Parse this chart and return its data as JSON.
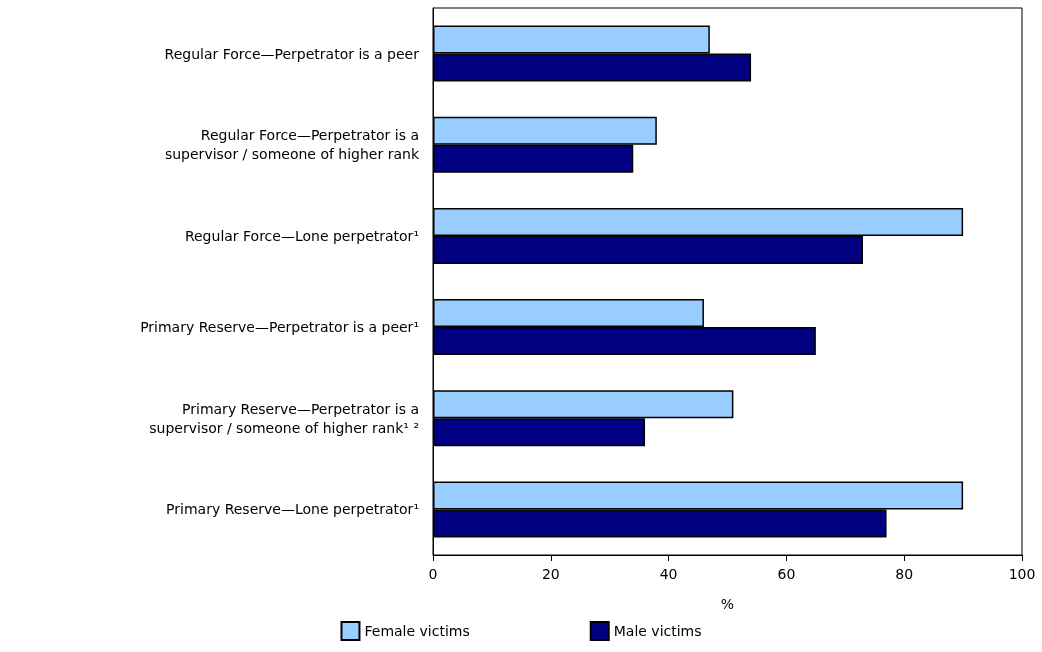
{
  "chart_data": {
    "type": "bar",
    "orientation": "horizontal",
    "xlabel": "%",
    "categories": [
      "Regular Force—Perpetrator is a peer",
      "Regular Force—Perpetrator is a\nsupervisor / someone of higher rank",
      "Regular Force—Lone perpetrator¹",
      "Primary Reserve—Perpetrator is a peer¹",
      "Primary Reserve—Perpetrator is a\nsupervisor / someone of higher rank¹ ²",
      "Primary Reserve—Lone perpetrator¹"
    ],
    "series": [
      {
        "name": "Female victims",
        "color": "#99ccff",
        "values": [
          47,
          38,
          90,
          46,
          51,
          90
        ]
      },
      {
        "name": "Male victims",
        "color": "#000080",
        "values": [
          54,
          34,
          73,
          65,
          36,
          77
        ]
      }
    ],
    "xlim": [
      0,
      100
    ],
    "xticks": [
      0,
      20,
      40,
      60,
      80,
      100
    ],
    "grid": false,
    "legend": "bottom"
  }
}
